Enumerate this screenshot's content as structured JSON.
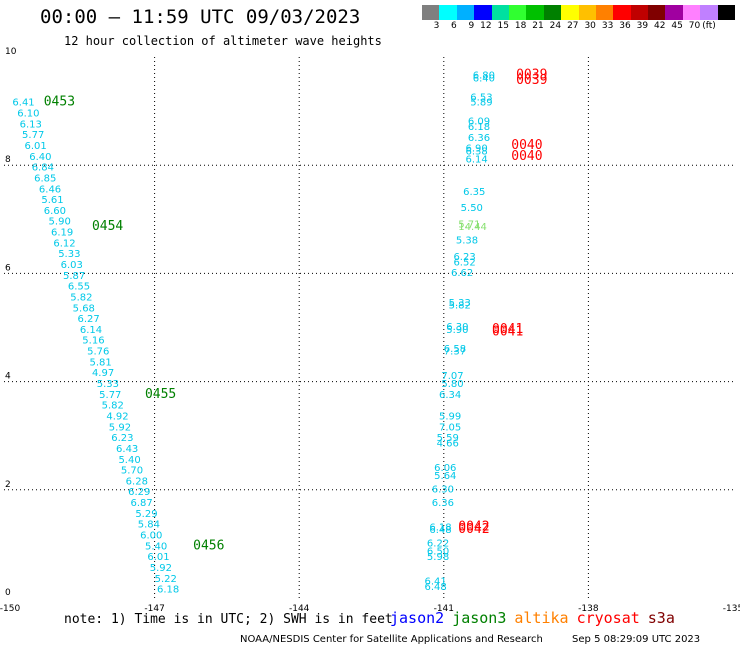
{
  "header": {
    "title": "00:00 – 11:59 UTC 09/03/2023",
    "subtitle": "12 hour collection of altimeter wave heights"
  },
  "scale": {
    "labels": [
      "3",
      "6",
      "9",
      "12",
      "15",
      "18",
      "21",
      "24",
      "27",
      "30",
      "33",
      "36",
      "39",
      "42",
      "45",
      "70"
    ],
    "unit": "(ft)",
    "colors": [
      "#7f7f7f",
      "#00ffff",
      "#00b0ff",
      "#0000ff",
      "#00e0a0",
      "#30ff30",
      "#00c000",
      "#008000",
      "#ffff00",
      "#ffc000",
      "#ff8000",
      "#ff0000",
      "#c00000",
      "#800000",
      "#a000a0",
      "#ff80ff",
      "#c080ff",
      "#000000"
    ]
  },
  "footer": {
    "note": "note: 1) Time is in UTC; 2) SWH is in feet",
    "satellites": [
      {
        "name": "jason2",
        "color": "#0000ff"
      },
      {
        "name": "jason3",
        "color": "#008000"
      },
      {
        "name": "altika",
        "color": "#ff8000"
      },
      {
        "name": "cryosat",
        "color": "#ff0000"
      },
      {
        "name": "s3a",
        "color": "#800000"
      }
    ],
    "credit": "NOAA/NESDIS Center for Satellite Applications and Research",
    "timestamp": "Sep  5 08:29:09 UTC 2023"
  },
  "chart_data": {
    "type": "scatter",
    "xlim": [
      -150,
      -135
    ],
    "ylim": [
      0,
      10
    ],
    "xticks": [
      "-150",
      "-147",
      "-144",
      "-141",
      "-138",
      "-135"
    ],
    "yticks": [
      "0",
      "2",
      "4",
      "6",
      "8",
      "10"
    ],
    "colors": {
      "teal": "#00c8e8",
      "green": "#88e070",
      "jason3": "#008000",
      "cryosat": "#ff0000"
    },
    "time_labels": [
      {
        "text": "0453",
        "lon": -149.3,
        "lat": 9.1,
        "color": "#008000"
      },
      {
        "text": "0454",
        "lon": -148.3,
        "lat": 6.8,
        "color": "#008000"
      },
      {
        "text": "0455",
        "lon": -147.2,
        "lat": 3.7,
        "color": "#008000"
      },
      {
        "text": "0456",
        "lon": -146.2,
        "lat": 0.9,
        "color": "#008000"
      },
      {
        "text": "0039",
        "lon": -139.5,
        "lat": 9.6,
        "color": "#ff0000"
      },
      {
        "text": "0039",
        "lon": -139.5,
        "lat": 9.5,
        "color": "#ff0000"
      },
      {
        "text": "0040",
        "lon": -139.6,
        "lat": 8.3,
        "color": "#ff0000"
      },
      {
        "text": "0040",
        "lon": -139.6,
        "lat": 8.1,
        "color": "#ff0000"
      },
      {
        "text": "0041",
        "lon": -140.0,
        "lat": 4.9,
        "color": "#ff0000"
      },
      {
        "text": "0041",
        "lon": -140.0,
        "lat": 4.85,
        "color": "#ff0000"
      },
      {
        "text": "0042",
        "lon": -140.7,
        "lat": 1.25,
        "color": "#ff0000"
      },
      {
        "text": "0042",
        "lon": -140.7,
        "lat": 1.2,
        "color": "#ff0000"
      }
    ],
    "points": [
      {
        "v": "6.41",
        "lon": -149.95,
        "lat": 9.1,
        "c": "teal"
      },
      {
        "v": "6.10",
        "lon": -149.85,
        "lat": 8.9,
        "c": "teal"
      },
      {
        "v": "6.13",
        "lon": -149.8,
        "lat": 8.7,
        "c": "teal"
      },
      {
        "v": "5.77",
        "lon": -149.75,
        "lat": 8.5,
        "c": "teal"
      },
      {
        "v": "6.01",
        "lon": -149.7,
        "lat": 8.3,
        "c": "teal"
      },
      {
        "v": "6.40",
        "lon": -149.6,
        "lat": 8.1,
        "c": "teal"
      },
      {
        "v": "6.84",
        "lon": -149.55,
        "lat": 7.9,
        "c": "teal"
      },
      {
        "v": "6.85",
        "lon": -149.5,
        "lat": 7.7,
        "c": "teal"
      },
      {
        "v": "6.46",
        "lon": -149.4,
        "lat": 7.5,
        "c": "teal"
      },
      {
        "v": "5.61",
        "lon": -149.35,
        "lat": 7.3,
        "c": "teal"
      },
      {
        "v": "6.60",
        "lon": -149.3,
        "lat": 7.1,
        "c": "teal"
      },
      {
        "v": "5.90",
        "lon": -149.2,
        "lat": 6.9,
        "c": "teal"
      },
      {
        "v": "6.19",
        "lon": -149.15,
        "lat": 6.7,
        "c": "teal"
      },
      {
        "v": "6.12",
        "lon": -149.1,
        "lat": 6.5,
        "c": "teal"
      },
      {
        "v": "5.33",
        "lon": -149.0,
        "lat": 6.3,
        "c": "teal"
      },
      {
        "v": "6.03",
        "lon": -148.95,
        "lat": 6.1,
        "c": "teal"
      },
      {
        "v": "5.87",
        "lon": -148.9,
        "lat": 5.9,
        "c": "teal"
      },
      {
        "v": "6.55",
        "lon": -148.8,
        "lat": 5.7,
        "c": "teal"
      },
      {
        "v": "5.82",
        "lon": -148.75,
        "lat": 5.5,
        "c": "teal"
      },
      {
        "v": "5.68",
        "lon": -148.7,
        "lat": 5.3,
        "c": "teal"
      },
      {
        "v": "6.27",
        "lon": -148.6,
        "lat": 5.1,
        "c": "teal"
      },
      {
        "v": "6.14",
        "lon": -148.55,
        "lat": 4.9,
        "c": "teal"
      },
      {
        "v": "5.16",
        "lon": -148.5,
        "lat": 4.7,
        "c": "teal"
      },
      {
        "v": "5.76",
        "lon": -148.4,
        "lat": 4.5,
        "c": "teal"
      },
      {
        "v": "5.81",
        "lon": -148.35,
        "lat": 4.3,
        "c": "teal"
      },
      {
        "v": "4.97",
        "lon": -148.3,
        "lat": 4.1,
        "c": "teal"
      },
      {
        "v": "5.33",
        "lon": -148.2,
        "lat": 3.9,
        "c": "teal"
      },
      {
        "v": "5.77",
        "lon": -148.15,
        "lat": 3.7,
        "c": "teal"
      },
      {
        "v": "5.82",
        "lon": -148.1,
        "lat": 3.5,
        "c": "teal"
      },
      {
        "v": "4.92",
        "lon": -148.0,
        "lat": 3.3,
        "c": "teal"
      },
      {
        "v": "5.92",
        "lon": -147.95,
        "lat": 3.1,
        "c": "teal"
      },
      {
        "v": "6.23",
        "lon": -147.9,
        "lat": 2.9,
        "c": "teal"
      },
      {
        "v": "6.43",
        "lon": -147.8,
        "lat": 2.7,
        "c": "teal"
      },
      {
        "v": "5.40",
        "lon": -147.75,
        "lat": 2.5,
        "c": "teal"
      },
      {
        "v": "5.70",
        "lon": -147.7,
        "lat": 2.3,
        "c": "teal"
      },
      {
        "v": "6.28",
        "lon": -147.6,
        "lat": 2.1,
        "c": "teal"
      },
      {
        "v": "6.29",
        "lon": -147.55,
        "lat": 1.9,
        "c": "teal"
      },
      {
        "v": "6.87",
        "lon": -147.5,
        "lat": 1.7,
        "c": "teal"
      },
      {
        "v": "5.29",
        "lon": -147.4,
        "lat": 1.5,
        "c": "teal"
      },
      {
        "v": "5.84",
        "lon": -147.35,
        "lat": 1.3,
        "c": "teal"
      },
      {
        "v": "6.00",
        "lon": -147.3,
        "lat": 1.1,
        "c": "teal"
      },
      {
        "v": "5.40",
        "lon": -147.2,
        "lat": 0.9,
        "c": "teal"
      },
      {
        "v": "6.01",
        "lon": -147.15,
        "lat": 0.7,
        "c": "teal"
      },
      {
        "v": "5.92",
        "lon": -147.1,
        "lat": 0.5,
        "c": "teal"
      },
      {
        "v": "5.22",
        "lon": -147.0,
        "lat": 0.3,
        "c": "teal"
      },
      {
        "v": "6.18",
        "lon": -146.95,
        "lat": 0.1,
        "c": "teal"
      },
      {
        "v": "6.80",
        "lon": -140.4,
        "lat": 9.6,
        "c": "teal"
      },
      {
        "v": "6.40",
        "lon": -140.4,
        "lat": 9.55,
        "c": "teal"
      },
      {
        "v": "6.53",
        "lon": -140.45,
        "lat": 9.2,
        "c": "teal"
      },
      {
        "v": "5.89",
        "lon": -140.45,
        "lat": 9.1,
        "c": "teal"
      },
      {
        "v": "6.09",
        "lon": -140.5,
        "lat": 8.75,
        "c": "teal"
      },
      {
        "v": "6.18",
        "lon": -140.5,
        "lat": 8.65,
        "c": "teal"
      },
      {
        "v": "6.36",
        "lon": -140.5,
        "lat": 8.45,
        "c": "teal"
      },
      {
        "v": "6.90",
        "lon": -140.55,
        "lat": 8.25,
        "c": "teal"
      },
      {
        "v": "6.38",
        "lon": -140.55,
        "lat": 8.2,
        "c": "teal"
      },
      {
        "v": "6.14",
        "lon": -140.55,
        "lat": 8.05,
        "c": "teal"
      },
      {
        "v": "6.35",
        "lon": -140.6,
        "lat": 7.45,
        "c": "teal"
      },
      {
        "v": "5.50",
        "lon": -140.65,
        "lat": 7.15,
        "c": "teal"
      },
      {
        "v": "5.71",
        "lon": -140.7,
        "lat": 6.85,
        "c": "green"
      },
      {
        "v": "14.44",
        "lon": -140.7,
        "lat": 6.8,
        "c": "green"
      },
      {
        "v": "5.38",
        "lon": -140.75,
        "lat": 6.55,
        "c": "teal"
      },
      {
        "v": "6.23",
        "lon": -140.8,
        "lat": 6.25,
        "c": "teal"
      },
      {
        "v": "6.52",
        "lon": -140.8,
        "lat": 6.15,
        "c": "teal"
      },
      {
        "v": "6.62",
        "lon": -140.85,
        "lat": 5.95,
        "c": "teal"
      },
      {
        "v": "5.33",
        "lon": -140.9,
        "lat": 5.4,
        "c": "teal"
      },
      {
        "v": "5.82",
        "lon": -140.9,
        "lat": 5.35,
        "c": "teal"
      },
      {
        "v": "6.30",
        "lon": -140.95,
        "lat": 4.95,
        "c": "teal"
      },
      {
        "v": "5.90",
        "lon": -140.95,
        "lat": 4.9,
        "c": "teal"
      },
      {
        "v": "6.58",
        "lon": -141.0,
        "lat": 4.55,
        "c": "teal"
      },
      {
        "v": "7.37",
        "lon": -141.0,
        "lat": 4.5,
        "c": "teal"
      },
      {
        "v": "7.07",
        "lon": -141.05,
        "lat": 4.05,
        "c": "teal"
      },
      {
        "v": "5.80",
        "lon": -141.05,
        "lat": 3.9,
        "c": "teal"
      },
      {
        "v": "6.34",
        "lon": -141.1,
        "lat": 3.7,
        "c": "teal"
      },
      {
        "v": "5.99",
        "lon": -141.1,
        "lat": 3.3,
        "c": "teal"
      },
      {
        "v": "7.05",
        "lon": -141.1,
        "lat": 3.1,
        "c": "teal"
      },
      {
        "v": "5.59",
        "lon": -141.15,
        "lat": 2.9,
        "c": "teal"
      },
      {
        "v": "4.66",
        "lon": -141.15,
        "lat": 2.8,
        "c": "teal"
      },
      {
        "v": "6.06",
        "lon": -141.2,
        "lat": 2.35,
        "c": "teal"
      },
      {
        "v": "5.64",
        "lon": -141.2,
        "lat": 2.2,
        "c": "teal"
      },
      {
        "v": "6.30",
        "lon": -141.25,
        "lat": 1.95,
        "c": "teal"
      },
      {
        "v": "6.36",
        "lon": -141.25,
        "lat": 1.7,
        "c": "teal"
      },
      {
        "v": "6.18",
        "lon": -141.3,
        "lat": 1.25,
        "c": "teal"
      },
      {
        "v": "6.48",
        "lon": -141.3,
        "lat": 1.2,
        "c": "teal"
      },
      {
        "v": "6.22",
        "lon": -141.35,
        "lat": 0.95,
        "c": "teal"
      },
      {
        "v": "6.50",
        "lon": -141.35,
        "lat": 0.8,
        "c": "teal"
      },
      {
        "v": "5.98",
        "lon": -141.35,
        "lat": 0.7,
        "c": "teal"
      },
      {
        "v": "6.41",
        "lon": -141.4,
        "lat": 0.25,
        "c": "teal"
      },
      {
        "v": "6.48",
        "lon": -141.4,
        "lat": 0.15,
        "c": "teal"
      }
    ]
  }
}
